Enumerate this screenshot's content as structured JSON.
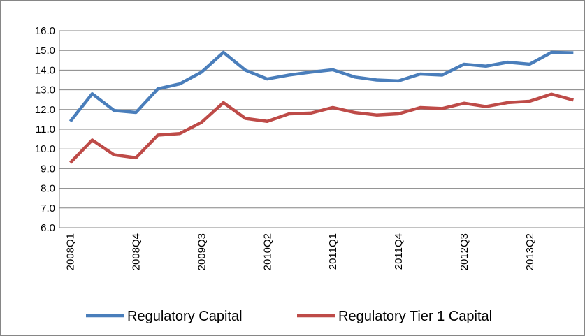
{
  "chart_data": {
    "type": "line",
    "categories": [
      "2008Q1",
      null,
      null,
      "2008Q4",
      null,
      null,
      "2009Q3",
      null,
      null,
      "2010Q2",
      null,
      null,
      "2011Q1",
      null,
      null,
      "2011Q4",
      null,
      null,
      "2012Q3",
      null,
      null,
      "2013Q2",
      null,
      null
    ],
    "series": [
      {
        "name": "Regulatory Capital",
        "color": "#4a7ebb",
        "values": [
          11.4,
          12.8,
          11.95,
          11.85,
          13.05,
          13.3,
          13.9,
          14.9,
          14.0,
          13.55,
          13.75,
          13.9,
          14.02,
          13.65,
          13.5,
          13.45,
          13.8,
          13.75,
          14.3,
          14.2,
          14.4,
          14.3,
          14.9,
          14.88
        ]
      },
      {
        "name": "Regulatory Tier 1 Capital",
        "color": "#be4b48",
        "values": [
          9.3,
          10.45,
          9.7,
          9.55,
          10.7,
          10.78,
          11.35,
          12.35,
          11.55,
          11.4,
          11.78,
          11.82,
          12.1,
          11.85,
          11.72,
          11.78,
          12.1,
          12.05,
          12.32,
          12.15,
          12.35,
          12.42,
          12.78,
          12.48
        ]
      }
    ],
    "ylim": [
      6,
      16
    ],
    "yticks": [
      {
        "value": 6,
        "label": "6.0"
      },
      {
        "value": 7,
        "label": "7.0"
      },
      {
        "value": 8,
        "label": "8.0"
      },
      {
        "value": 9,
        "label": "9.0"
      },
      {
        "value": 10,
        "label": "10.0"
      },
      {
        "value": 11,
        "label": "11.0"
      },
      {
        "value": 12,
        "label": "12.0"
      },
      {
        "value": 13,
        "label": "13.0"
      },
      {
        "value": 14,
        "label": "14.0"
      },
      {
        "value": 15,
        "label": "15.0"
      },
      {
        "value": 16,
        "label": "16.0"
      }
    ],
    "grid": true,
    "legend": "bottom"
  }
}
